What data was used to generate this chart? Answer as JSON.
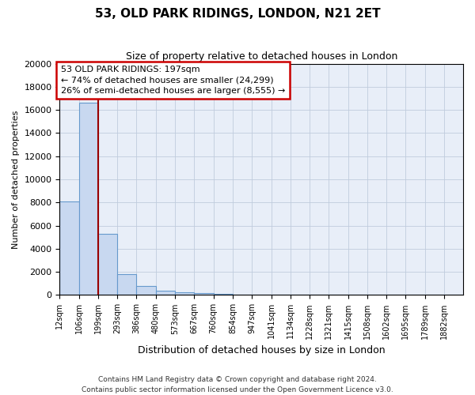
{
  "title": "53, OLD PARK RIDINGS, LONDON, N21 2ET",
  "subtitle": "Size of property relative to detached houses in London",
  "xlabel": "Distribution of detached houses by size in London",
  "ylabel": "Number of detached properties",
  "bar_color": "#c8d8f0",
  "bar_edge_color": "#6699cc",
  "background_color": "#e8eef8",
  "grid_color": "#c0ccdd",
  "vline_x_index": 2,
  "vline_color": "#990000",
  "annotation_line1": "53 OLD PARK RIDINGS: 197sqm",
  "annotation_line2": "← 74% of detached houses are smaller (24,299)",
  "annotation_line3": "26% of semi-detached houses are larger (8,555) →",
  "annotation_box_color": "#cc0000",
  "footnote_line1": "Contains HM Land Registry data © Crown copyright and database right 2024.",
  "footnote_line2": "Contains public sector information licensed under the Open Government Licence v3.0.",
  "bin_labels": [
    "12sqm",
    "106sqm",
    "199sqm",
    "293sqm",
    "386sqm",
    "480sqm",
    "573sqm",
    "667sqm",
    "760sqm",
    "854sqm",
    "947sqm",
    "1041sqm",
    "1134sqm",
    "1228sqm",
    "1321sqm",
    "1415sqm",
    "1508sqm",
    "1602sqm",
    "1695sqm",
    "1789sqm",
    "1882sqm"
  ],
  "bin_lefts": [
    12,
    106,
    199,
    293,
    386,
    480,
    573,
    667,
    760,
    854,
    947,
    1041,
    1134,
    1228,
    1321,
    1415,
    1508,
    1602,
    1695,
    1789,
    1882
  ],
  "bin_width": 93,
  "bar_heights": [
    8100,
    16600,
    5300,
    1800,
    800,
    350,
    250,
    150,
    100,
    0,
    0,
    0,
    0,
    0,
    0,
    0,
    0,
    0,
    0,
    0,
    0
  ],
  "ylim": [
    0,
    20000
  ],
  "xlim_left": 12,
  "xlim_right": 1975,
  "yticks": [
    0,
    2000,
    4000,
    6000,
    8000,
    10000,
    12000,
    14000,
    16000,
    18000,
    20000
  ]
}
